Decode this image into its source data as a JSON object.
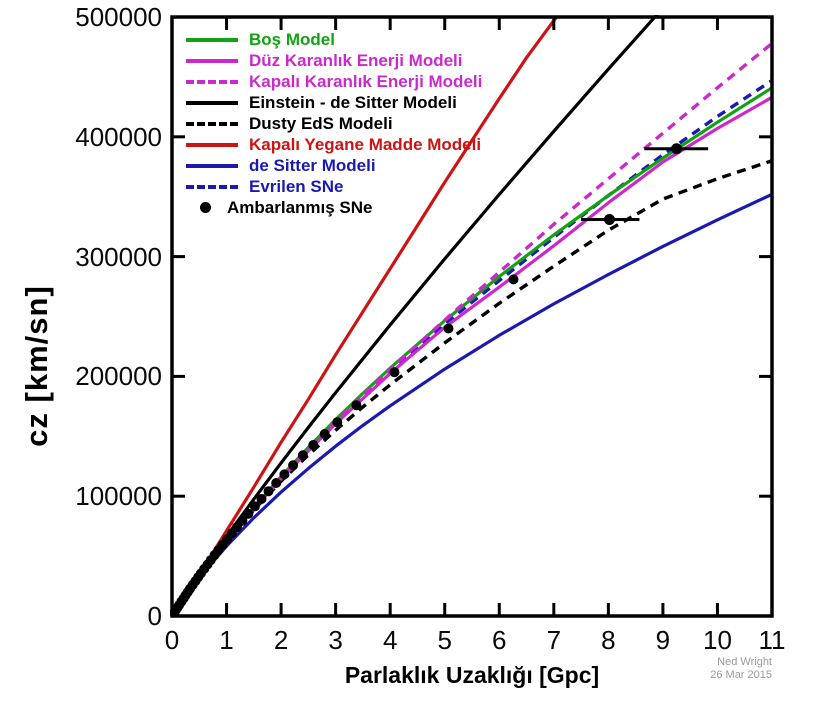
{
  "figure": {
    "x_axis": {
      "label": "Parlaklık Uzaklığı [Gpc]",
      "tick_labels": [
        "0",
        "1",
        "2",
        "3",
        "4",
        "5",
        "6",
        "7",
        "8",
        "9",
        "10",
        "11"
      ],
      "tick_values": [
        0,
        1,
        2,
        3,
        4,
        5,
        6,
        7,
        8,
        9,
        10,
        11
      ]
    },
    "y_axis": {
      "label": "cz [km/sn]",
      "tick_labels": [
        "0",
        "100000",
        "200000",
        "300000",
        "400000",
        "500000"
      ],
      "tick_values": [
        0,
        100000,
        200000,
        300000,
        400000,
        500000
      ]
    },
    "attribution": {
      "line1": "Ned Wright",
      "line2": "26 Mar 2015"
    }
  },
  "legend": {
    "items": [
      {
        "key": "bos-model",
        "label": "Boş Model",
        "color": "#12a312",
        "style": "solid"
      },
      {
        "key": "duz-karanlik-enerji",
        "label": "Düz Karanlık Enerji Modeli",
        "color": "#cc29cc",
        "style": "solid"
      },
      {
        "key": "kapali-karanlik-enerji",
        "label": "Kapalı Karanlık Enerji Modeli",
        "color": "#cc29cc",
        "style": "dashed"
      },
      {
        "key": "einstein-de-sitter",
        "label": "Einstein - de Sitter Modeli",
        "color": "#000000",
        "style": "solid"
      },
      {
        "key": "dusty-eds",
        "label": "Dusty EdS Modeli",
        "color": "#000000",
        "style": "dashed"
      },
      {
        "key": "kapali-yegane-madde",
        "label": "Kapalı Yegane Madde Modeli",
        "color": "#cc1414",
        "style": "solid"
      },
      {
        "key": "de-sitter",
        "label": "de Sitter Modeli",
        "color": "#1a1ab0",
        "style": "solid"
      },
      {
        "key": "evrilen-sne",
        "label": "Evrilen SNe",
        "color": "#1a1ab0",
        "style": "dashed"
      },
      {
        "key": "ambarlanmis-sne",
        "label": "Ambarlanmış SNe",
        "color": "#000000",
        "style": "dot"
      }
    ]
  },
  "chart_data": {
    "type": "line",
    "title": "",
    "xlabel": "Parlaklık Uzaklığı [Gpc]",
    "ylabel": "cz [km/sn]",
    "xlim": [
      0,
      11
    ],
    "ylim": [
      0,
      500000
    ],
    "grid": false,
    "legend_position": "upper-left-inside",
    "series": [
      {
        "key": "kapali-yegane-madde",
        "name": "Kapalı Yegane Madde Modeli",
        "color": "#cc1414",
        "dash": false,
        "x": [
          0,
          0.25,
          0.5,
          0.75,
          1,
          1.5,
          2,
          2.5,
          3,
          3.5,
          4,
          4.5,
          5,
          5.5,
          6,
          6.5,
          7.05
        ],
        "y": [
          0,
          17500,
          35000,
          52800,
          71000,
          107500,
          145000,
          181000,
          218000,
          254000,
          290000,
          326000,
          362000,
          397000,
          432000,
          466000,
          500000
        ]
      },
      {
        "key": "einstein-de-sitter",
        "name": "Einstein - de Sitter Modeli",
        "color": "#000000",
        "dash": false,
        "x": [
          0,
          0.25,
          0.5,
          0.75,
          1,
          1.5,
          2,
          2.5,
          3,
          3.5,
          4,
          5,
          6,
          7,
          8,
          9
        ],
        "y": [
          0,
          17100,
          33900,
          50300,
          66300,
          97500,
          127800,
          157400,
          186400,
          214700,
          243000,
          298100,
          351900,
          404600,
          456500,
          507500
        ]
      },
      {
        "key": "dusty-eds",
        "name": "Dusty EdS Modeli",
        "color": "#000000",
        "dash": true,
        "x": [
          0,
          0.25,
          0.5,
          0.75,
          1,
          1.5,
          2,
          2.5,
          3,
          3.5,
          4,
          5,
          6,
          7,
          8,
          9,
          10,
          11
        ],
        "y": [
          0,
          17000,
          33300,
          48000,
          62000,
          88500,
          112500,
          134500,
          155000,
          174500,
          193000,
          228000,
          261000,
          292000,
          322000,
          348000,
          365000,
          380000
        ]
      },
      {
        "key": "de-sitter",
        "name": "de Sitter Modeli",
        "color": "#1a1ab0",
        "dash": false,
        "x": [
          0,
          0.25,
          0.5,
          0.75,
          1,
          1.5,
          2,
          2.5,
          3,
          3.5,
          4,
          5,
          6,
          7,
          8,
          9,
          10,
          11
        ],
        "y": [
          0,
          16500,
          31500,
          45300,
          58300,
          82000,
          103400,
          123200,
          141700,
          159100,
          175500,
          206100,
          234300,
          260500,
          285100,
          308500,
          330700,
          352000
        ]
      },
      {
        "key": "evrilen-sne",
        "name": "Evrilen SNe",
        "color": "#1a1ab0",
        "dash": true,
        "x": [
          0,
          0.25,
          0.5,
          0.75,
          1,
          1.5,
          2,
          2.5,
          3,
          3.5,
          4,
          5,
          6,
          7,
          8,
          9,
          10,
          11
        ],
        "y": [
          0,
          16800,
          33000,
          48000,
          63000,
          90000,
          115000,
          139000,
          161500,
          183000,
          204000,
          244000,
          280000,
          316000,
          351000,
          385000,
          417000,
          447000
        ]
      },
      {
        "key": "bos-model",
        "name": "Boş Model",
        "color": "#12a312",
        "dash": false,
        "x": [
          0,
          0.25,
          0.5,
          0.75,
          1,
          1.5,
          2,
          2.5,
          3,
          3.5,
          4,
          5,
          6,
          7,
          8,
          9,
          10,
          11
        ],
        "y": [
          0,
          17000,
          33000,
          48300,
          63000,
          90600,
          116600,
          140800,
          163900,
          185800,
          206900,
          246500,
          283400,
          318100,
          351000,
          382200,
          412200,
          440900
        ]
      },
      {
        "key": "duz-karanlik-enerji",
        "name": "Düz Karanlık Enerji Modeli",
        "color": "#cc29cc",
        "dash": false,
        "x": [
          0,
          0.25,
          0.5,
          0.75,
          1,
          1.5,
          2,
          2.5,
          3,
          3.5,
          4,
          5,
          6,
          7,
          8,
          9,
          10,
          11
        ],
        "y": [
          0,
          17000,
          33400,
          48400,
          62500,
          89500,
          114500,
          138000,
          160500,
          181500,
          202500,
          241000,
          274500,
          309000,
          345000,
          379000,
          407000,
          433000
        ]
      },
      {
        "key": "kapali-karanlik-enerji",
        "name": "Kapalı Karanlık Enerji Modeli",
        "color": "#cc29cc",
        "dash": true,
        "x": [
          0,
          0.25,
          0.5,
          0.75,
          1,
          1.5,
          2,
          2.5,
          3,
          3.5,
          4,
          5,
          6,
          7,
          8,
          9,
          10,
          11
        ],
        "y": [
          0,
          17000,
          33400,
          48500,
          62800,
          90000,
          115500,
          139500,
          162500,
          184000,
          206000,
          247000,
          287000,
          327000,
          365000,
          403000,
          441000,
          478000
        ]
      }
    ],
    "scatter": {
      "key": "ambarlanmis-sne",
      "name": "Ambarlanmış SNe",
      "color": "#000000",
      "points": [
        [
          0.04,
          2800
        ],
        [
          0.07,
          4900
        ],
        [
          0.1,
          7000
        ],
        [
          0.13,
          9100
        ],
        [
          0.17,
          11900
        ],
        [
          0.21,
          14600
        ],
        [
          0.25,
          17300
        ],
        [
          0.29,
          20000
        ],
        [
          0.33,
          22700
        ],
        [
          0.38,
          26000
        ],
        [
          0.43,
          29200
        ],
        [
          0.48,
          32400
        ],
        [
          0.53,
          35600
        ],
        [
          0.59,
          39300
        ],
        [
          0.65,
          43000
        ],
        [
          0.71,
          46600
        ],
        [
          0.78,
          50800
        ],
        [
          0.85,
          54900
        ],
        [
          0.93,
          59500
        ],
        [
          1.01,
          64100
        ],
        [
          1.1,
          69100
        ],
        [
          1.19,
          74100
        ],
        [
          1.29,
          79500
        ],
        [
          1.4,
          85400
        ],
        [
          1.52,
          91600
        ],
        [
          1.64,
          97700
        ],
        [
          1.77,
          104200
        ],
        [
          1.91,
          111000
        ],
        [
          2.06,
          118200
        ],
        [
          2.22,
          125800
        ],
        [
          2.4,
          134100
        ],
        [
          2.59,
          142700
        ],
        [
          2.8,
          151900
        ],
        [
          3.03,
          161800
        ],
        [
          3.38,
          176000
        ],
        [
          4.08,
          203500
        ],
        [
          5.07,
          240000
        ],
        [
          6.26,
          281000
        ]
      ],
      "points_with_xerr": [
        {
          "x": 8.02,
          "y": 331000,
          "xlo": 7.5,
          "xhi": 8.57
        },
        {
          "x": 9.25,
          "y": 390000,
          "xlo": 8.66,
          "xhi": 9.83
        }
      ]
    }
  }
}
